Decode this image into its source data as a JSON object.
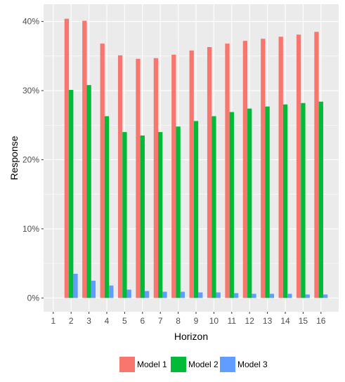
{
  "chart_data": {
    "type": "bar",
    "xlabel": "Horizon",
    "ylabel": "Response",
    "categories": [
      "1",
      "2",
      "3",
      "4",
      "5",
      "6",
      "7",
      "8",
      "9",
      "10",
      "11",
      "12",
      "13",
      "14",
      "15",
      "16"
    ],
    "series": [
      {
        "name": "Model 1",
        "color": "#F8766D",
        "values": [
          null,
          0.404,
          0.401,
          0.368,
          0.351,
          0.346,
          0.347,
          0.352,
          0.358,
          0.363,
          0.368,
          0.372,
          0.375,
          0.378,
          0.381,
          0.385
        ]
      },
      {
        "name": "Model 2",
        "color": "#00BA38",
        "values": [
          null,
          0.301,
          0.308,
          0.263,
          0.24,
          0.235,
          0.24,
          0.248,
          0.256,
          0.263,
          0.269,
          0.274,
          0.277,
          0.28,
          0.282,
          0.284
        ]
      },
      {
        "name": "Model 3",
        "color": "#619CFF",
        "values": [
          null,
          0.035,
          0.025,
          0.018,
          0.012,
          0.01,
          0.009,
          0.009,
          0.008,
          0.008,
          0.007,
          0.006,
          0.006,
          0.006,
          0.005,
          0.005
        ]
      }
    ],
    "y_ticks": [
      0,
      0.1,
      0.2,
      0.3,
      0.4
    ],
    "y_tick_labels": [
      "0%",
      "10%",
      "20%",
      "30%",
      "40%"
    ],
    "ylim": [
      -0.02,
      0.425
    ],
    "grid": true,
    "legend_position": "bottom"
  },
  "colors": {
    "panel_background": "#EBEBEB",
    "grid_major": "#FFFFFF"
  }
}
